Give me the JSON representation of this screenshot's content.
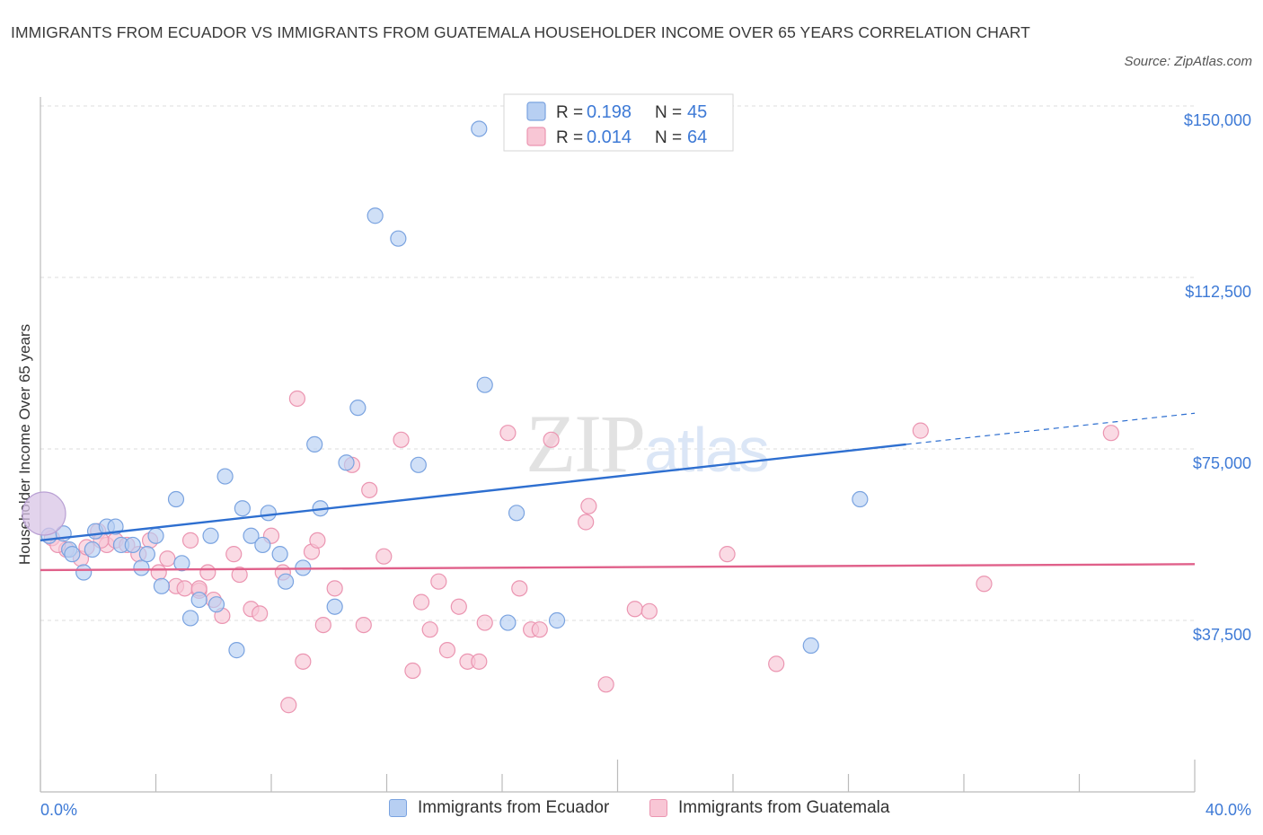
{
  "title": "IMMIGRANTS FROM ECUADOR VS IMMIGRANTS FROM GUATEMALA HOUSEHOLDER INCOME OVER 65 YEARS CORRELATION CHART",
  "source": "Source: ZipAtlas.com",
  "watermark": "ZIPatlas",
  "legend": {
    "rows": [
      {
        "r_label": "R =",
        "r_value": "0.198",
        "n_label": "N =",
        "n_value": "45"
      },
      {
        "r_label": "R =",
        "r_value": "0.014",
        "n_label": "N =",
        "n_value": "64"
      }
    ]
  },
  "colors": {
    "ecuador_fill": "#b7cff2",
    "ecuador_stroke": "#7aa3e0",
    "ecuador_line": "#2e6fd0",
    "guatemala_fill": "#f8c6d5",
    "guatemala_stroke": "#eb95b1",
    "guatemala_line": "#e0608a",
    "accent_text": "#3e7ad6"
  },
  "chart_data": {
    "type": "scatter",
    "title": "IMMIGRANTS FROM ECUADOR VS IMMIGRANTS FROM GUATEMALA HOUSEHOLDER INCOME OVER 65 YEARS CORRELATION CHART",
    "xlabel": "",
    "ylabel": "Householder Income Over 65 years",
    "xlim": [
      0,
      40
    ],
    "ylim": [
      0,
      150000
    ],
    "x_tick_labels": [
      "0.0%",
      "40.0%"
    ],
    "y_ticks": [
      {
        "value": 37500,
        "label": "$37,500"
      },
      {
        "value": 75000,
        "label": "$75,000"
      },
      {
        "value": 112500,
        "label": "$112,500"
      },
      {
        "value": 150000,
        "label": "$150,000"
      }
    ],
    "grid": "horizontal dashed",
    "legend_placement": "bottom",
    "series": [
      {
        "name": "Immigrants from Ecuador",
        "r": 0.198,
        "n": 45,
        "trend": {
          "x0": 0,
          "y0": 55000,
          "x1": 30,
          "y1": 76000,
          "dash_to_x": 40,
          "dash_to_y": 82800
        },
        "points": [
          [
            0.3,
            56000
          ],
          [
            0.8,
            56500
          ],
          [
            1.0,
            53000
          ],
          [
            1.1,
            52000
          ],
          [
            1.5,
            48000
          ],
          [
            1.8,
            53000
          ],
          [
            1.9,
            57000
          ],
          [
            2.3,
            58000
          ],
          [
            2.6,
            58000
          ],
          [
            2.8,
            54000
          ],
          [
            3.2,
            54000
          ],
          [
            3.5,
            49000
          ],
          [
            3.7,
            52000
          ],
          [
            4.0,
            56000
          ],
          [
            4.2,
            45000
          ],
          [
            4.7,
            64000
          ],
          [
            4.9,
            50000
          ],
          [
            5.2,
            38000
          ],
          [
            5.5,
            42000
          ],
          [
            5.9,
            56000
          ],
          [
            6.1,
            41000
          ],
          [
            6.4,
            69000
          ],
          [
            6.8,
            31000
          ],
          [
            7.0,
            62000
          ],
          [
            7.3,
            56000
          ],
          [
            7.7,
            54000
          ],
          [
            7.9,
            61000
          ],
          [
            8.3,
            52000
          ],
          [
            8.5,
            46000
          ],
          [
            9.1,
            49000
          ],
          [
            9.5,
            76000
          ],
          [
            9.7,
            62000
          ],
          [
            10.2,
            40500
          ],
          [
            10.6,
            72000
          ],
          [
            11.0,
            84000
          ],
          [
            11.6,
            126000
          ],
          [
            12.4,
            121000
          ],
          [
            13.1,
            71500
          ],
          [
            15.2,
            145000
          ],
          [
            15.4,
            89000
          ],
          [
            16.2,
            37000
          ],
          [
            16.5,
            61000
          ],
          [
            17.9,
            37500
          ],
          [
            26.7,
            32000
          ],
          [
            28.4,
            64000
          ]
        ]
      },
      {
        "name": "Immigrants from Guatemala",
        "r": 0.014,
        "n": 64,
        "trend": {
          "x0": 0,
          "y0": 48500,
          "x1": 40,
          "y1": 49800
        },
        "points": [
          [
            0.4,
            55500
          ],
          [
            0.9,
            53000
          ],
          [
            1.4,
            51000
          ],
          [
            1.6,
            53500
          ],
          [
            2.0,
            57000
          ],
          [
            2.3,
            54000
          ],
          [
            2.6,
            55000
          ],
          [
            3.0,
            54000
          ],
          [
            3.4,
            52000
          ],
          [
            3.8,
            55000
          ],
          [
            4.1,
            48000
          ],
          [
            4.4,
            51000
          ],
          [
            4.7,
            45000
          ],
          [
            5.0,
            44500
          ],
          [
            5.2,
            55000
          ],
          [
            5.5,
            44000
          ],
          [
            5.8,
            48000
          ],
          [
            6.0,
            42000
          ],
          [
            6.3,
            38500
          ],
          [
            6.7,
            52000
          ],
          [
            6.9,
            47500
          ],
          [
            7.3,
            40000
          ],
          [
            7.6,
            39000
          ],
          [
            8.0,
            56000
          ],
          [
            8.4,
            48000
          ],
          [
            8.9,
            86000
          ],
          [
            9.1,
            28500
          ],
          [
            9.4,
            52500
          ],
          [
            9.6,
            55000
          ],
          [
            9.8,
            36500
          ],
          [
            10.2,
            44500
          ],
          [
            10.8,
            71500
          ],
          [
            11.2,
            36500
          ],
          [
            11.4,
            66000
          ],
          [
            11.9,
            51500
          ],
          [
            12.5,
            77000
          ],
          [
            12.9,
            26500
          ],
          [
            13.2,
            41500
          ],
          [
            13.5,
            35500
          ],
          [
            13.8,
            46000
          ],
          [
            14.1,
            31000
          ],
          [
            14.5,
            40500
          ],
          [
            14.8,
            28500
          ],
          [
            15.2,
            28500
          ],
          [
            15.4,
            37000
          ],
          [
            16.2,
            78500
          ],
          [
            16.6,
            44500
          ],
          [
            17.0,
            35500
          ],
          [
            17.3,
            35500
          ],
          [
            17.7,
            77000
          ],
          [
            18.9,
            59000
          ],
          [
            19.0,
            62500
          ],
          [
            19.6,
            23500
          ],
          [
            20.6,
            40000
          ],
          [
            21.1,
            39500
          ],
          [
            23.8,
            52000
          ],
          [
            8.6,
            19000
          ],
          [
            25.5,
            28000
          ],
          [
            30.5,
            79000
          ],
          [
            32.7,
            45500
          ],
          [
            37.1,
            78500
          ],
          [
            5.5,
            44500
          ],
          [
            2.1,
            55000
          ],
          [
            0.6,
            54000
          ]
        ]
      }
    ]
  },
  "bottom_legend": [
    "Immigrants from Ecuador",
    "Immigrants from Guatemala"
  ]
}
